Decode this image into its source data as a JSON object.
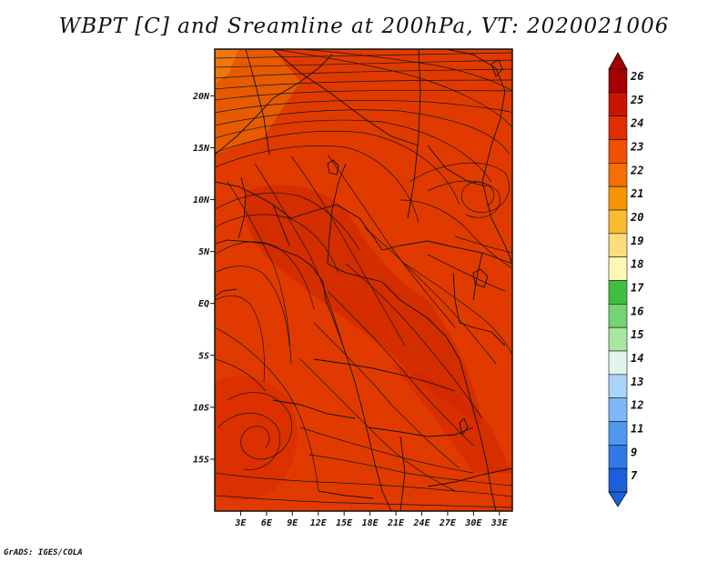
{
  "title": "WBPT [C] and Sreamline at 200hPa, VT: 2020021006",
  "credit": "GrADS: IGES/COLA",
  "map": {
    "lat_ticks": [
      "20N",
      "15N",
      "10N",
      "5N",
      "EQ",
      "5S",
      "10S",
      "15S"
    ],
    "lon_ticks": [
      "3E",
      "6E",
      "9E",
      "12E",
      "15E",
      "18E",
      "21E",
      "24E",
      "27E",
      "30E",
      "33E"
    ],
    "lat_range": [
      -20,
      24.5
    ],
    "lon_range": [
      0,
      34.5
    ]
  },
  "colorbar": {
    "labels": [
      "26",
      "25",
      "24",
      "23",
      "22",
      "21",
      "20",
      "19",
      "18",
      "17",
      "16",
      "15",
      "14",
      "13",
      "12",
      "11",
      "9",
      "7"
    ],
    "colors": [
      "#a50000",
      "#c81400",
      "#e12d00",
      "#f05000",
      "#f57000",
      "#f79500",
      "#fabb30",
      "#fddc80",
      "#fff7b5",
      "#3fbf3f",
      "#72d472",
      "#a9e6a0",
      "#e2f4ee",
      "#a8d4f8",
      "#7db9f6",
      "#4f98ee",
      "#2f7ae6",
      "#1a5fdb"
    ]
  }
}
